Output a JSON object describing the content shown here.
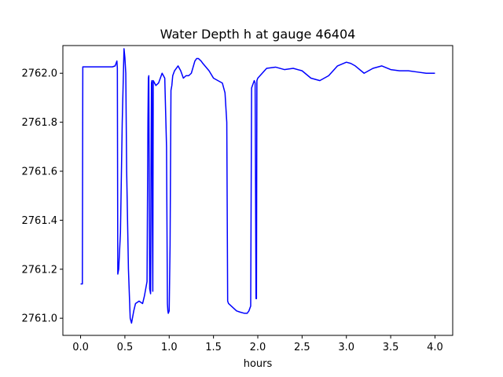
{
  "chart_data": {
    "type": "line",
    "title": "Water Depth h at gauge 46404",
    "xlabel": "hours",
    "ylabel": "",
    "xlim": [
      -0.2,
      4.2
    ],
    "ylim": [
      2760.93,
      2762.113
    ],
    "xticks": [
      0.0,
      0.5,
      1.0,
      1.5,
      2.0,
      2.5,
      3.0,
      3.5,
      4.0
    ],
    "xtick_labels": [
      "0.0",
      "0.5",
      "1.0",
      "1.5",
      "2.0",
      "2.5",
      "3.0",
      "3.5",
      "4.0"
    ],
    "yticks": [
      2761.0,
      2761.2,
      2761.4,
      2761.6,
      2761.8,
      2762.0
    ],
    "ytick_labels": [
      "2761.0",
      "2761.2",
      "2761.4",
      "2761.6",
      "2761.8",
      "2762.0"
    ],
    "grid": false,
    "color": "#0000ff",
    "series": [
      {
        "x": [
          0.0,
          0.02,
          0.025,
          0.03,
          0.1,
          0.2,
          0.3,
          0.36,
          0.39,
          0.41,
          0.415,
          0.42,
          0.43,
          0.45,
          0.47,
          0.49,
          0.5,
          0.51,
          0.52,
          0.54,
          0.56,
          0.575,
          0.6,
          0.62,
          0.66,
          0.7,
          0.72,
          0.75,
          0.76,
          0.765,
          0.77,
          0.775,
          0.78,
          0.79,
          0.795,
          0.8,
          0.805,
          0.81,
          0.815,
          0.82,
          0.85,
          0.88,
          0.92,
          0.95,
          0.97,
          0.98,
          0.985,
          0.99,
          1.0,
          1.01,
          1.02,
          1.03,
          1.04,
          1.06,
          1.1,
          1.13,
          1.16,
          1.19,
          1.22,
          1.25,
          1.29,
          1.31,
          1.33,
          1.36,
          1.38,
          1.45,
          1.5,
          1.55,
          1.6,
          1.63,
          1.65,
          1.66,
          1.67,
          1.7,
          1.73,
          1.76,
          1.8,
          1.85,
          1.88,
          1.9,
          1.91,
          1.92,
          1.93,
          1.94,
          1.95,
          1.96,
          1.97,
          1.98,
          1.985,
          1.99,
          2.0,
          2.05,
          2.1,
          2.2,
          2.3,
          2.4,
          2.5,
          2.6,
          2.7,
          2.8,
          2.9,
          3.0,
          3.05,
          3.1,
          3.2,
          3.3,
          3.4,
          3.5,
          3.6,
          3.7,
          3.8,
          3.9,
          4.0
        ],
        "y": [
          2761.14,
          2761.14,
          2762.026,
          2762.026,
          2762.026,
          2762.026,
          2762.026,
          2762.026,
          2762.03,
          2762.05,
          2762.02,
          2761.18,
          2761.2,
          2761.35,
          2761.8,
          2762.1,
          2762.064,
          2762.0,
          2761.6,
          2761.2,
          2761.0,
          2760.98,
          2761.03,
          2761.06,
          2761.07,
          2761.06,
          2761.09,
          2761.15,
          2761.8,
          2761.98,
          2761.99,
          2761.5,
          2761.12,
          2761.1,
          2761.6,
          2761.96,
          2761.97,
          2761.4,
          2761.11,
          2761.97,
          2761.95,
          2761.96,
          2762.0,
          2761.98,
          2761.7,
          2761.06,
          2761.03,
          2761.02,
          2761.03,
          2761.3,
          2761.93,
          2761.95,
          2761.99,
          2762.01,
          2762.03,
          2762.01,
          2761.98,
          2761.99,
          2761.99,
          2762.0,
          2762.05,
          2762.06,
          2762.06,
          2762.05,
          2762.04,
          2762.01,
          2761.98,
          2761.97,
          2761.96,
          2761.92,
          2761.8,
          2761.07,
          2761.06,
          2761.05,
          2761.04,
          2761.03,
          2761.025,
          2761.02,
          2761.02,
          2761.03,
          2761.04,
          2761.05,
          2761.94,
          2761.95,
          2761.96,
          2761.97,
          2761.96,
          2761.08,
          2761.08,
          2761.97,
          2761.98,
          2762.0,
          2762.02,
          2762.025,
          2762.015,
          2762.02,
          2762.01,
          2761.98,
          2761.97,
          2761.99,
          2762.03,
          2762.045,
          2762.04,
          2762.03,
          2762.0,
          2762.02,
          2762.03,
          2762.015,
          2762.01,
          2762.01,
          2762.005,
          2762.0,
          2762.0
        ]
      }
    ]
  }
}
